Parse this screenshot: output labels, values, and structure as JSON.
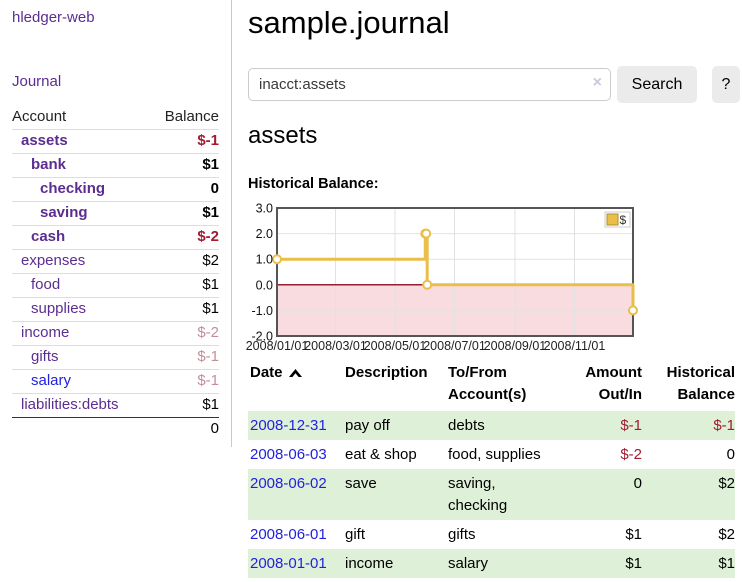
{
  "colors": {
    "link_purple": "#5c2d91",
    "link_blue": "#2222dd",
    "negative_red": "#a11b31",
    "faded_red": "#c48e99",
    "row_green": "#dff0d8",
    "chart_gold": "#e9bf4a",
    "chart_negative_pink": "#f9dcdf",
    "chart_zero_line": "#941f2d"
  },
  "sidebar": {
    "app_title": "hledger-web",
    "journal_label": "Journal",
    "accounts_table": {
      "headers": {
        "account": "Account",
        "balance": "Balance"
      },
      "rows": [
        {
          "name": "assets",
          "level": 1,
          "bold": true,
          "link_color": "purple",
          "balance": "$-1",
          "balance_color": "negative"
        },
        {
          "name": "bank",
          "level": 2,
          "bold": true,
          "link_color": "purple",
          "balance": "$1",
          "balance_color": "normal"
        },
        {
          "name": "checking",
          "level": 3,
          "bold": true,
          "link_color": "purple",
          "balance": "0",
          "balance_color": "normal"
        },
        {
          "name": "saving",
          "level": 3,
          "bold": true,
          "link_color": "purple",
          "balance": "$1",
          "balance_color": "normal"
        },
        {
          "name": "cash",
          "level": 2,
          "bold": true,
          "link_color": "purple",
          "balance": "$-2",
          "balance_color": "negative"
        },
        {
          "name": "expenses",
          "level": 1,
          "bold": false,
          "link_color": "purple",
          "balance": "$2",
          "balance_color": "normal"
        },
        {
          "name": "food",
          "level": 2,
          "bold": false,
          "link_color": "purple",
          "balance": "$1",
          "balance_color": "normal"
        },
        {
          "name": "supplies",
          "level": 2,
          "bold": false,
          "link_color": "purple",
          "balance": "$1",
          "balance_color": "normal"
        },
        {
          "name": "income",
          "level": 1,
          "bold": false,
          "link_color": "purple",
          "balance": "$-2",
          "balance_color": "faded"
        },
        {
          "name": "gifts",
          "level": 2,
          "bold": false,
          "link_color": "purple",
          "balance": "$-1",
          "balance_color": "faded"
        },
        {
          "name": "salary",
          "level": 2,
          "bold": false,
          "link_color": "blue",
          "balance": "$-1",
          "balance_color": "faded"
        },
        {
          "name": "liabilities:debts",
          "level": 1,
          "bold": false,
          "link_color": "purple",
          "balance": "$1",
          "balance_color": "normal"
        }
      ],
      "total": "0"
    }
  },
  "main": {
    "title": "sample.journal",
    "search": {
      "value": "inacct:assets",
      "clear_icon": "×",
      "button_label": "Search",
      "help_label": "?"
    },
    "account_heading": "assets",
    "chart_heading": "Historical Balance:",
    "register_table": {
      "headers": {
        "date": "Date",
        "description": "Description",
        "accounts": "To/From Account(s)",
        "amount": "Amount Out/In",
        "balance": "Historical Balance"
      },
      "sort_icon": "caret-up",
      "rows": [
        {
          "date": "2008-12-31",
          "description": "pay off",
          "accounts": "debts",
          "amount": "$-1",
          "amount_color": "negative",
          "balance": "$-1",
          "balance_color": "negative"
        },
        {
          "date": "2008-06-03",
          "description": "eat & shop",
          "accounts": "food, supplies",
          "amount": "$-2",
          "amount_color": "negative",
          "balance": "0",
          "balance_color": "normal"
        },
        {
          "date": "2008-06-02",
          "description": "save",
          "accounts": "saving, checking",
          "amount": "0",
          "amount_color": "normal",
          "balance": "$2",
          "balance_color": "normal"
        },
        {
          "date": "2008-06-01",
          "description": "gift",
          "accounts": "gifts",
          "amount": "$1",
          "amount_color": "normal",
          "balance": "$2",
          "balance_color": "normal"
        },
        {
          "date": "2008-01-01",
          "description": "income",
          "accounts": "salary",
          "amount": "$1",
          "amount_color": "normal",
          "balance": "$1",
          "balance_color": "normal"
        }
      ]
    }
  },
  "chart_data": {
    "type": "line",
    "step": true,
    "title": "Historical Balance:",
    "series": [
      {
        "name": "$",
        "color": "#e9bf4a",
        "points": [
          [
            "2008-01-01",
            1
          ],
          [
            "2008-06-01",
            2
          ],
          [
            "2008-06-02",
            2
          ],
          [
            "2008-06-03",
            0
          ],
          [
            "2008-12-31",
            -1
          ]
        ]
      }
    ],
    "ylim": [
      -2,
      3
    ],
    "yticks": [
      3,
      2,
      1,
      0,
      -1,
      -2
    ],
    "xticks": [
      "2008/01/01",
      "2008/03/01",
      "2008/05/01",
      "2008/07/01",
      "2008/09/01",
      "2008/11/01"
    ],
    "xlabel": "",
    "ylabel": "",
    "grid": true,
    "legend": {
      "label": "$",
      "position": "top-right"
    },
    "negative_fill": "#f9dcdf",
    "zero_line_color": "#941f2d"
  }
}
